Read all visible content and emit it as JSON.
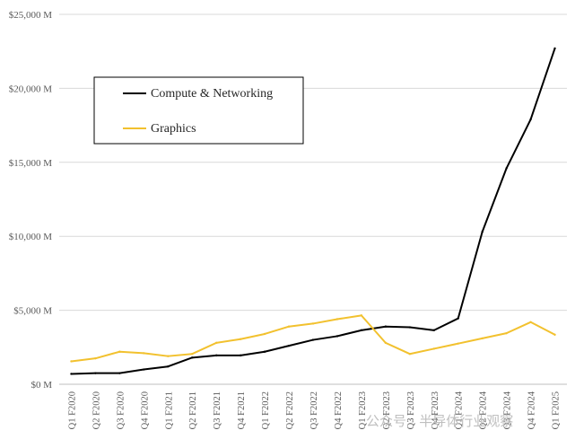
{
  "chart_data": {
    "type": "line",
    "title": "",
    "xlabel": "",
    "ylabel": "",
    "categories": [
      "Q1 F2020",
      "Q2 F2020",
      "Q3 F2020",
      "Q4 F2020",
      "Q1 F2021",
      "Q2 F2021",
      "Q3 F2021",
      "Q4 F2021",
      "Q1 F2022",
      "Q2 F2022",
      "Q3 F2022",
      "Q4 F2022",
      "Q1 F2023",
      "Q2 F2023",
      "Q3 F2023",
      "Q4 F2023",
      "Q1 F2024",
      "Q2 F2024",
      "Q3 F2024",
      "Q4 F2024",
      "Q1 F2025"
    ],
    "series": [
      {
        "name": "Compute & Networking",
        "color": "#000000",
        "values": [
          700,
          750,
          750,
          1000,
          1200,
          1800,
          1950,
          1950,
          2200,
          2600,
          3000,
          3250,
          3650,
          3900,
          3850,
          3650,
          4450,
          10300,
          14600,
          17900,
          22700
        ]
      },
      {
        "name": "Graphics",
        "color": "#f2c12e",
        "values": [
          1550,
          1750,
          2200,
          2100,
          1900,
          2050,
          2800,
          3050,
          3400,
          3900,
          4100,
          4400,
          4650,
          2800,
          2050,
          2400,
          2750,
          3100,
          3450,
          4200,
          3350
        ]
      }
    ],
    "ylim": [
      0,
      25000
    ],
    "yticks": [
      0,
      5000,
      10000,
      15000,
      20000,
      25000
    ],
    "ytick_labels": [
      "$0 M",
      "$5,000 M",
      "$10,000 M",
      "$15,000 M",
      "$20,000 M",
      "$25,000 M"
    ],
    "grid": "horizontal",
    "legend_position": "top-left"
  },
  "watermark": "公众号 · 半导体行业观察"
}
